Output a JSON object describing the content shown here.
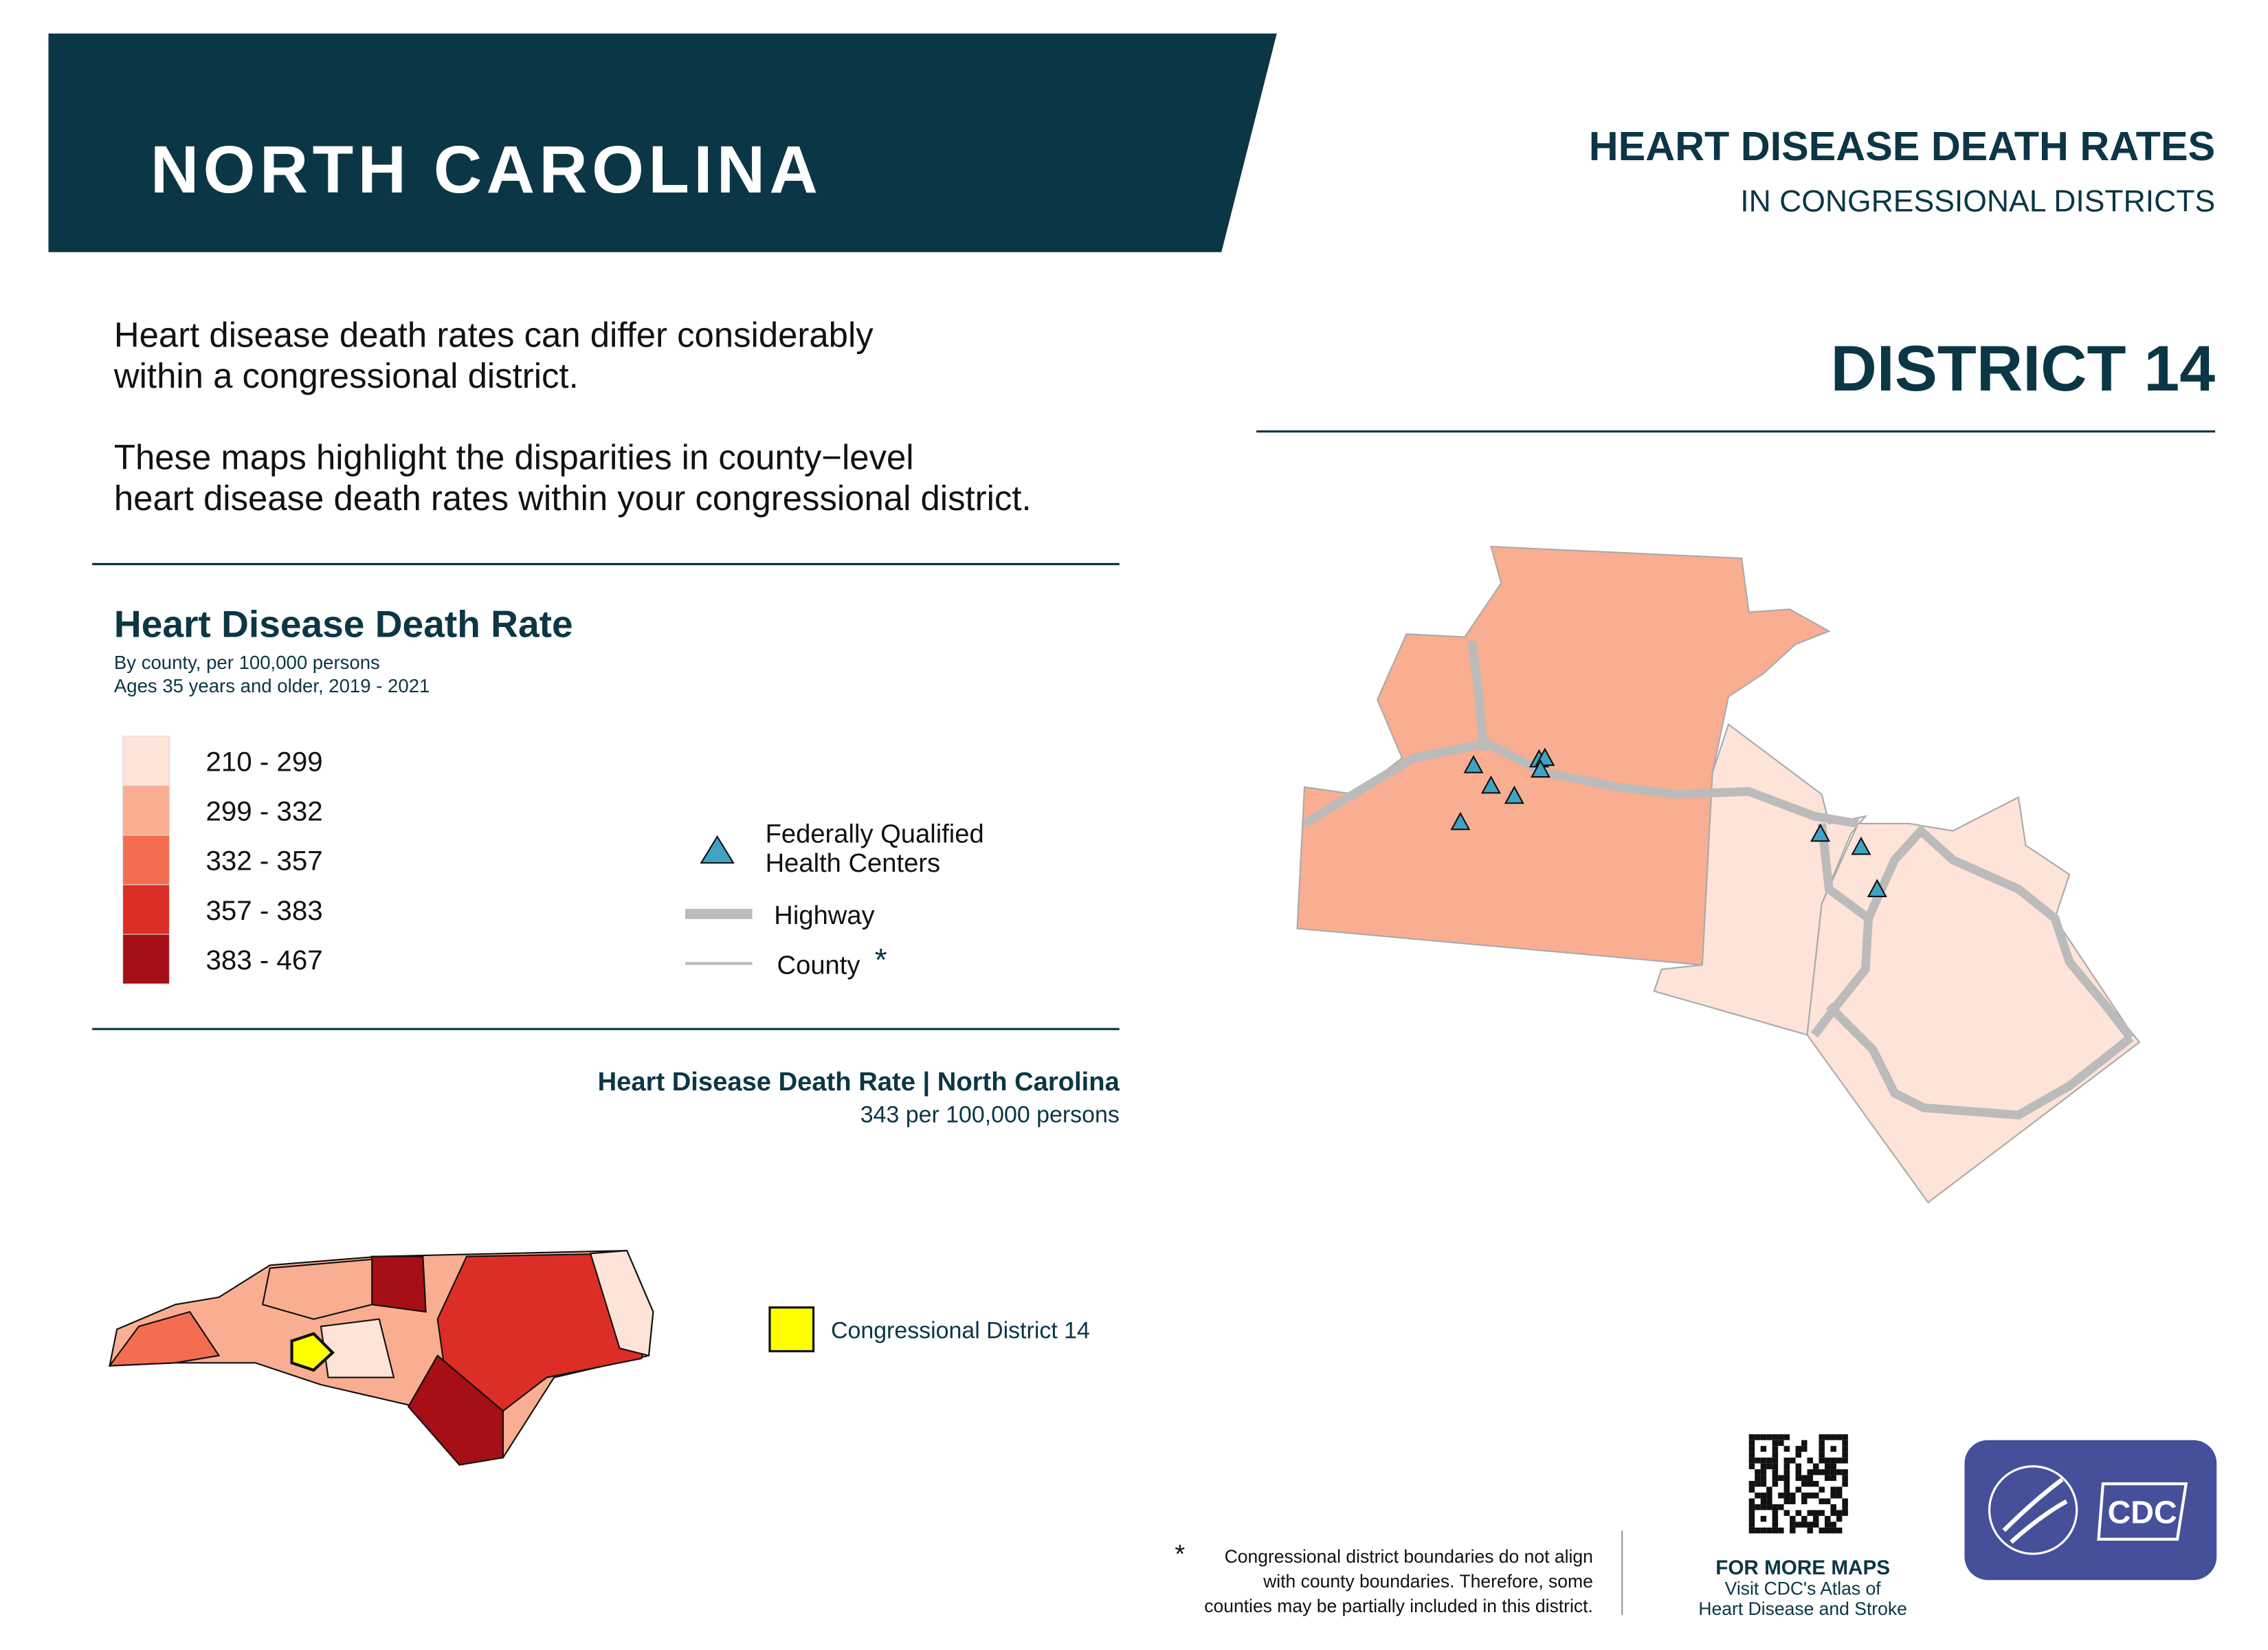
{
  "header": {
    "state": "NORTH CAROLINA",
    "title": "HEART DISEASE DEATH RATES",
    "subtitle": "IN CONGRESSIONAL DISTRICTS",
    "district": "DISTRICT  14"
  },
  "intro": {
    "paragraph1": [
      "Heart disease death rates can differ considerably",
      "within a congressional district."
    ],
    "paragraph2": [
      "These maps highlight the disparities in county−level",
      "heart disease death rates within your congressional district."
    ]
  },
  "legend": {
    "title": "Heart Disease Death Rate",
    "notes": [
      "By county, per 100,000 persons",
      "Ages 35 years and older, 2019 - 2021"
    ],
    "bins": [
      {
        "label": "210 - 299",
        "color": "#fde3d8"
      },
      {
        "label": "299 - 332",
        "color": "#f9ae91"
      },
      {
        "label": "332 - 357",
        "color": "#f46d50"
      },
      {
        "label": "357 - 383",
        "color": "#dc2e26"
      },
      {
        "label": "383 - 467",
        "color": "#a50f15"
      }
    ],
    "facilities": [
      "Federally Qualified",
      "Health Centers"
    ],
    "highway": "Highway",
    "county": "County",
    "county_mark": "*"
  },
  "state_rate": {
    "title": "Heart Disease Death Rate | North Carolina",
    "value": "343 per 100,000 persons"
  },
  "state_map": {
    "district_label": "Congressional District 14"
  },
  "footnote": {
    "mark": "*",
    "lines": [
      "Congressional district boundaries do not align",
      "with county boundaries. Therefore, some",
      "counties may be partially included in this district."
    ]
  },
  "more_maps": {
    "title": "FOR MORE MAPS",
    "lines": [
      "Visit CDC's Atlas of",
      "Heart Disease and Stroke"
    ]
  },
  "logo": {
    "text": "CDC"
  }
}
